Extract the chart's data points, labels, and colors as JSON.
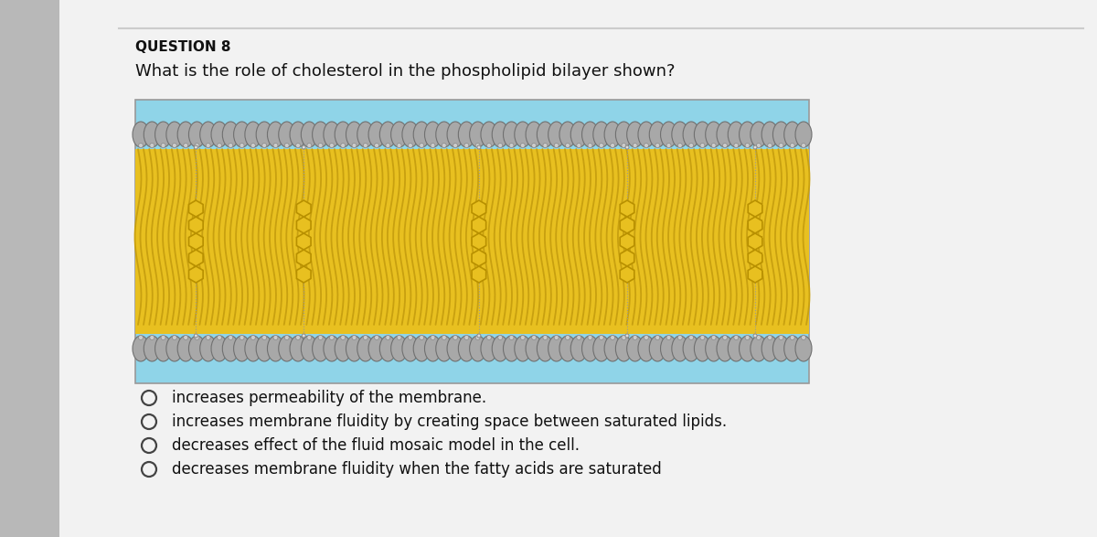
{
  "question_label": "QUESTION 8",
  "question_text": "What is the role of cholesterol in the phospholipid bilayer shown?",
  "options": [
    "increases permeability of the membrane.",
    "increases membrane fluidity by creating space between saturated lipids.",
    "decreases effect of the fluid mosaic model in the cell.",
    "decreases membrane fluidity when the fatty acids are saturated"
  ],
  "bg_outer": "#b8b8b8",
  "bg_page": "#f0f0f0",
  "img_bg": "#8FD4E8",
  "tail_yellow": "#E8C020",
  "tail_yellow_dark": "#C8A010",
  "head_gray_light": "#b0b0b0",
  "head_gray_dark": "#808080",
  "chol_ring": "#E8C020",
  "chol_ring_edge": "#B89000",
  "question_fontsize": 13,
  "label_fontsize": 11,
  "option_fontsize": 12
}
